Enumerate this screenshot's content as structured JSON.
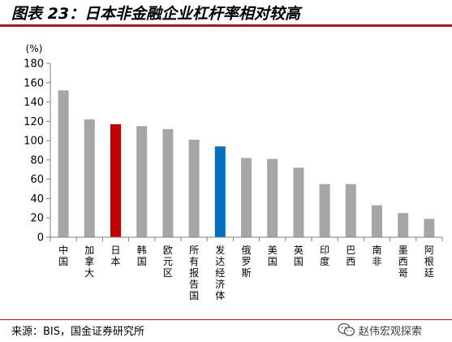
{
  "header": {
    "title": "图表 23：日本非金融企业杠杆率相对较高"
  },
  "footer": {
    "source": "来源：BIS，国金证券研究所",
    "watermark": "赵伟宏观探索"
  },
  "colors": {
    "default_bar": "#a6a6a6",
    "highlight_japan": "#c00000",
    "highlight_developed": "#0070c0",
    "rule": "#9c1c22"
  },
  "icons": {
    "watermark_icon": "wechat-icon"
  },
  "chart_data": {
    "type": "bar",
    "unit_label": "(%)",
    "categories": [
      "中国",
      "加拿大",
      "日本",
      "韩国",
      "欧元区",
      "所有报告国",
      "发达经济体",
      "俄罗斯",
      "美国",
      "英国",
      "印度",
      "巴西",
      "南非",
      "墨西哥",
      "阿根廷"
    ],
    "values": [
      152,
      122,
      117,
      115,
      112,
      101,
      94,
      82,
      81,
      72,
      55,
      55,
      33,
      25,
      19
    ],
    "highlight": {
      "日本": "#c00000",
      "发达经济体": "#0070c0"
    },
    "ylim": [
      0,
      180
    ],
    "yticks": [
      0,
      20,
      40,
      60,
      80,
      100,
      120,
      140,
      160,
      180
    ],
    "grid": false
  }
}
